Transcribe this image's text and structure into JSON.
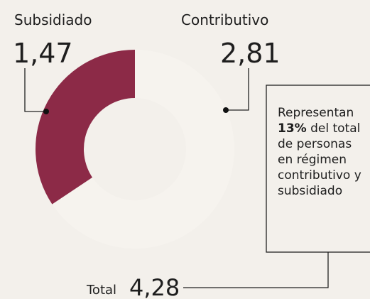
{
  "chart_data": {
    "type": "pie",
    "categories": [
      "Subsidiado",
      "Contributivo"
    ],
    "values": [
      1.47,
      2.81
    ],
    "value_labels": [
      "1,47",
      "2,81"
    ],
    "colors": [
      "#8c2a47",
      "#f6f3ee"
    ],
    "total": {
      "label": "Total",
      "value": 4.28,
      "value_label": "4,28"
    },
    "annotation": {
      "before": "Representan",
      "highlight": "13%",
      "after": "del total de personas en régimen contributivo y subsidiado"
    }
  }
}
